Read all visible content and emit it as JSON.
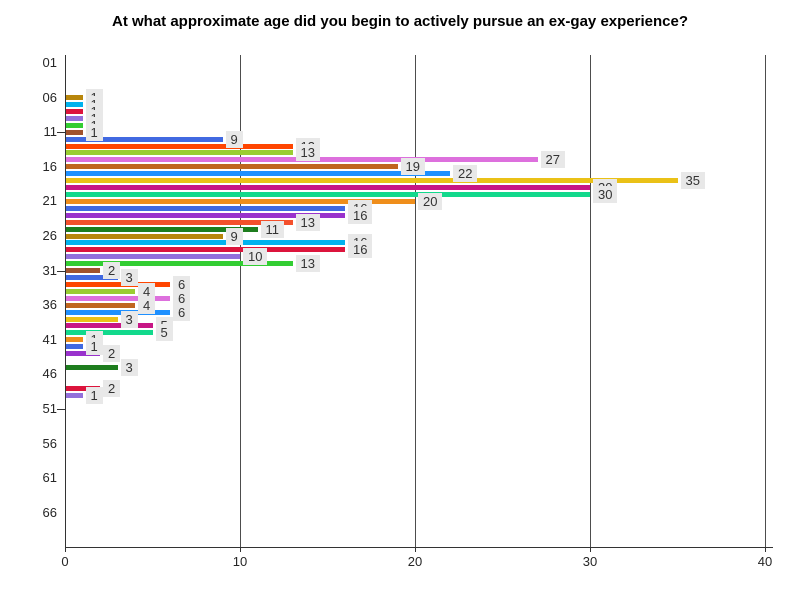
{
  "chart_data": {
    "type": "bar",
    "orientation": "horizontal",
    "title": "At what approximate age did you begin to actively pursue an ex-gay experience?",
    "xlabel": "",
    "ylabel": "",
    "xlim": [
      0,
      40
    ],
    "x_tick_values": [
      0,
      10,
      20,
      30,
      40
    ],
    "x_tick_labels": [
      "0",
      "10",
      "20",
      "30",
      "40"
    ],
    "y_tick_ages": [
      1,
      6,
      11,
      16,
      21,
      26,
      31,
      36,
      41,
      46,
      51,
      56,
      61,
      66
    ],
    "y_tick_labels": [
      "01",
      "06",
      "11",
      "16",
      "21",
      "26",
      "31",
      "36",
      "41",
      "46",
      "51",
      "56",
      "61",
      "66"
    ],
    "y_dash_ticks": [
      11,
      31,
      51
    ],
    "grid": "vertical gridlines at major x ticks, drawn behind bars",
    "legend_position": "none",
    "points": [
      {
        "age": 6,
        "value": 1,
        "color": "#B8860B"
      },
      {
        "age": 7,
        "value": 1,
        "color": "#00B2EE"
      },
      {
        "age": 8,
        "value": 1,
        "color": "#DC143C"
      },
      {
        "age": 9,
        "value": 1,
        "color": "#9370DB"
      },
      {
        "age": 10,
        "value": 1,
        "color": "#32CD32"
      },
      {
        "age": 11,
        "value": 1,
        "color": "#A0522D"
      },
      {
        "age": 12,
        "value": 9,
        "color": "#4169E1"
      },
      {
        "age": 13,
        "value": 13,
        "color": "#FF4500"
      },
      {
        "age": 14,
        "value": 13,
        "color": "#9ACD32"
      },
      {
        "age": 15,
        "value": 27,
        "color": "#DD70DD"
      },
      {
        "age": 16,
        "value": 19,
        "color": "#C0651E"
      },
      {
        "age": 17,
        "value": 22,
        "color": "#1E90FF"
      },
      {
        "age": 18,
        "value": 35,
        "color": "#EAC117"
      },
      {
        "age": 19,
        "value": 30,
        "color": "#C71585"
      },
      {
        "age": 20,
        "value": 30,
        "color": "#12D98C"
      },
      {
        "age": 21,
        "value": 20,
        "color": "#EF8E1B"
      },
      {
        "age": 22,
        "value": 16,
        "color": "#4169E1"
      },
      {
        "age": 23,
        "value": 16,
        "color": "#9932CC"
      },
      {
        "age": 24,
        "value": 13,
        "color": "#F4502C"
      },
      {
        "age": 25,
        "value": 11,
        "color": "#1E7D1E"
      },
      {
        "age": 26,
        "value": 9,
        "color": "#B8860B"
      },
      {
        "age": 27,
        "value": 16,
        "color": "#00B2EE"
      },
      {
        "age": 28,
        "value": 16,
        "color": "#DC143C"
      },
      {
        "age": 29,
        "value": 10,
        "color": "#9370DB"
      },
      {
        "age": 30,
        "value": 13,
        "color": "#32CD32"
      },
      {
        "age": 31,
        "value": 2,
        "color": "#A0522D"
      },
      {
        "age": 32,
        "value": 3,
        "color": "#4169E1"
      },
      {
        "age": 33,
        "value": 6,
        "color": "#FF4500"
      },
      {
        "age": 34,
        "value": 4,
        "color": "#9ACD32"
      },
      {
        "age": 35,
        "value": 6,
        "color": "#DD70DD"
      },
      {
        "age": 36,
        "value": 4,
        "color": "#C0651E"
      },
      {
        "age": 37,
        "value": 6,
        "color": "#1E90FF"
      },
      {
        "age": 38,
        "value": 3,
        "color": "#EAC117"
      },
      {
        "age": 39,
        "value": 5,
        "color": "#C71585"
      },
      {
        "age": 40,
        "value": 5,
        "color": "#12D98C"
      },
      {
        "age": 41,
        "value": 1,
        "color": "#EF8E1B"
      },
      {
        "age": 42,
        "value": 1,
        "color": "#4169E1"
      },
      {
        "age": 43,
        "value": 2,
        "color": "#9932CC"
      },
      {
        "age": 45,
        "value": 3,
        "color": "#1E7D1E"
      },
      {
        "age": 48,
        "value": 2,
        "color": "#DC143C"
      },
      {
        "age": 49,
        "value": 1,
        "color": "#9370DB"
      }
    ]
  },
  "styles": {
    "background": "#FFFFFF",
    "grid_color": "#4D4D4D",
    "axis_color": "#333333",
    "text_color": "#262626",
    "value_label_bg": "#E8E8E8",
    "value_label_text": "#333333"
  }
}
